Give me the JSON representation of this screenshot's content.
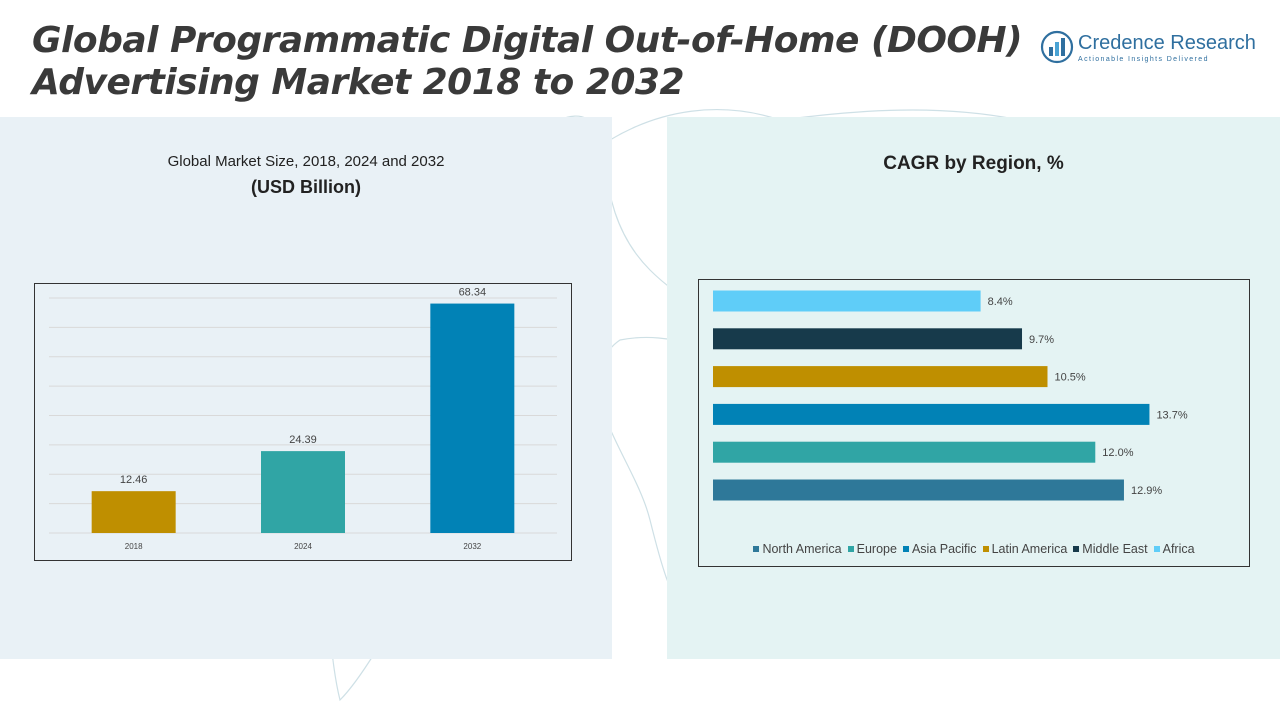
{
  "header": {
    "title_line1": "Global Programmatic Digital Out-of-Home (DOOH)",
    "title_line2": "Advertising Market 2018 to 2032"
  },
  "logo": {
    "name": "Credence Research",
    "tagline": "Actionable Insights Delivered",
    "icon": "credence-logo-icon"
  },
  "left_panel": {
    "subtitle": "Global Market Size, 2018, 2024 and 2032",
    "unit": "(USD Billion)"
  },
  "right_panel": {
    "title": "CAGR by Region, %"
  },
  "chart_data": [
    {
      "type": "bar",
      "categories": [
        "2018",
        "2024",
        "2032"
      ],
      "values": [
        12.46,
        24.39,
        68.34
      ],
      "value_labels": [
        "12.46",
        "24.39",
        "68.34"
      ],
      "colors": [
        "#bf8f00",
        "#30a5a5",
        "#0182b6"
      ],
      "ylim": [
        0,
        70
      ],
      "grid": true,
      "title": "",
      "xlabel": "",
      "ylabel": ""
    },
    {
      "type": "bar",
      "orientation": "horizontal",
      "categories": [
        "North America",
        "Europe",
        "Asia Pacific",
        "Latin America",
        "Middle East",
        "Africa"
      ],
      "values": [
        12.9,
        12.0,
        13.7,
        10.5,
        9.7,
        8.4
      ],
      "value_labels": [
        "12.9%",
        "12.0%",
        "13.7%",
        "10.5%",
        "9.7%",
        "8.4%"
      ],
      "colors": [
        "#2e7899",
        "#30a5a5",
        "#0182b6",
        "#bf8f00",
        "#173a4b",
        "#5fcdf8"
      ],
      "xlim": [
        0,
        14
      ],
      "legend": "bottom",
      "grid": false,
      "title": ""
    }
  ]
}
